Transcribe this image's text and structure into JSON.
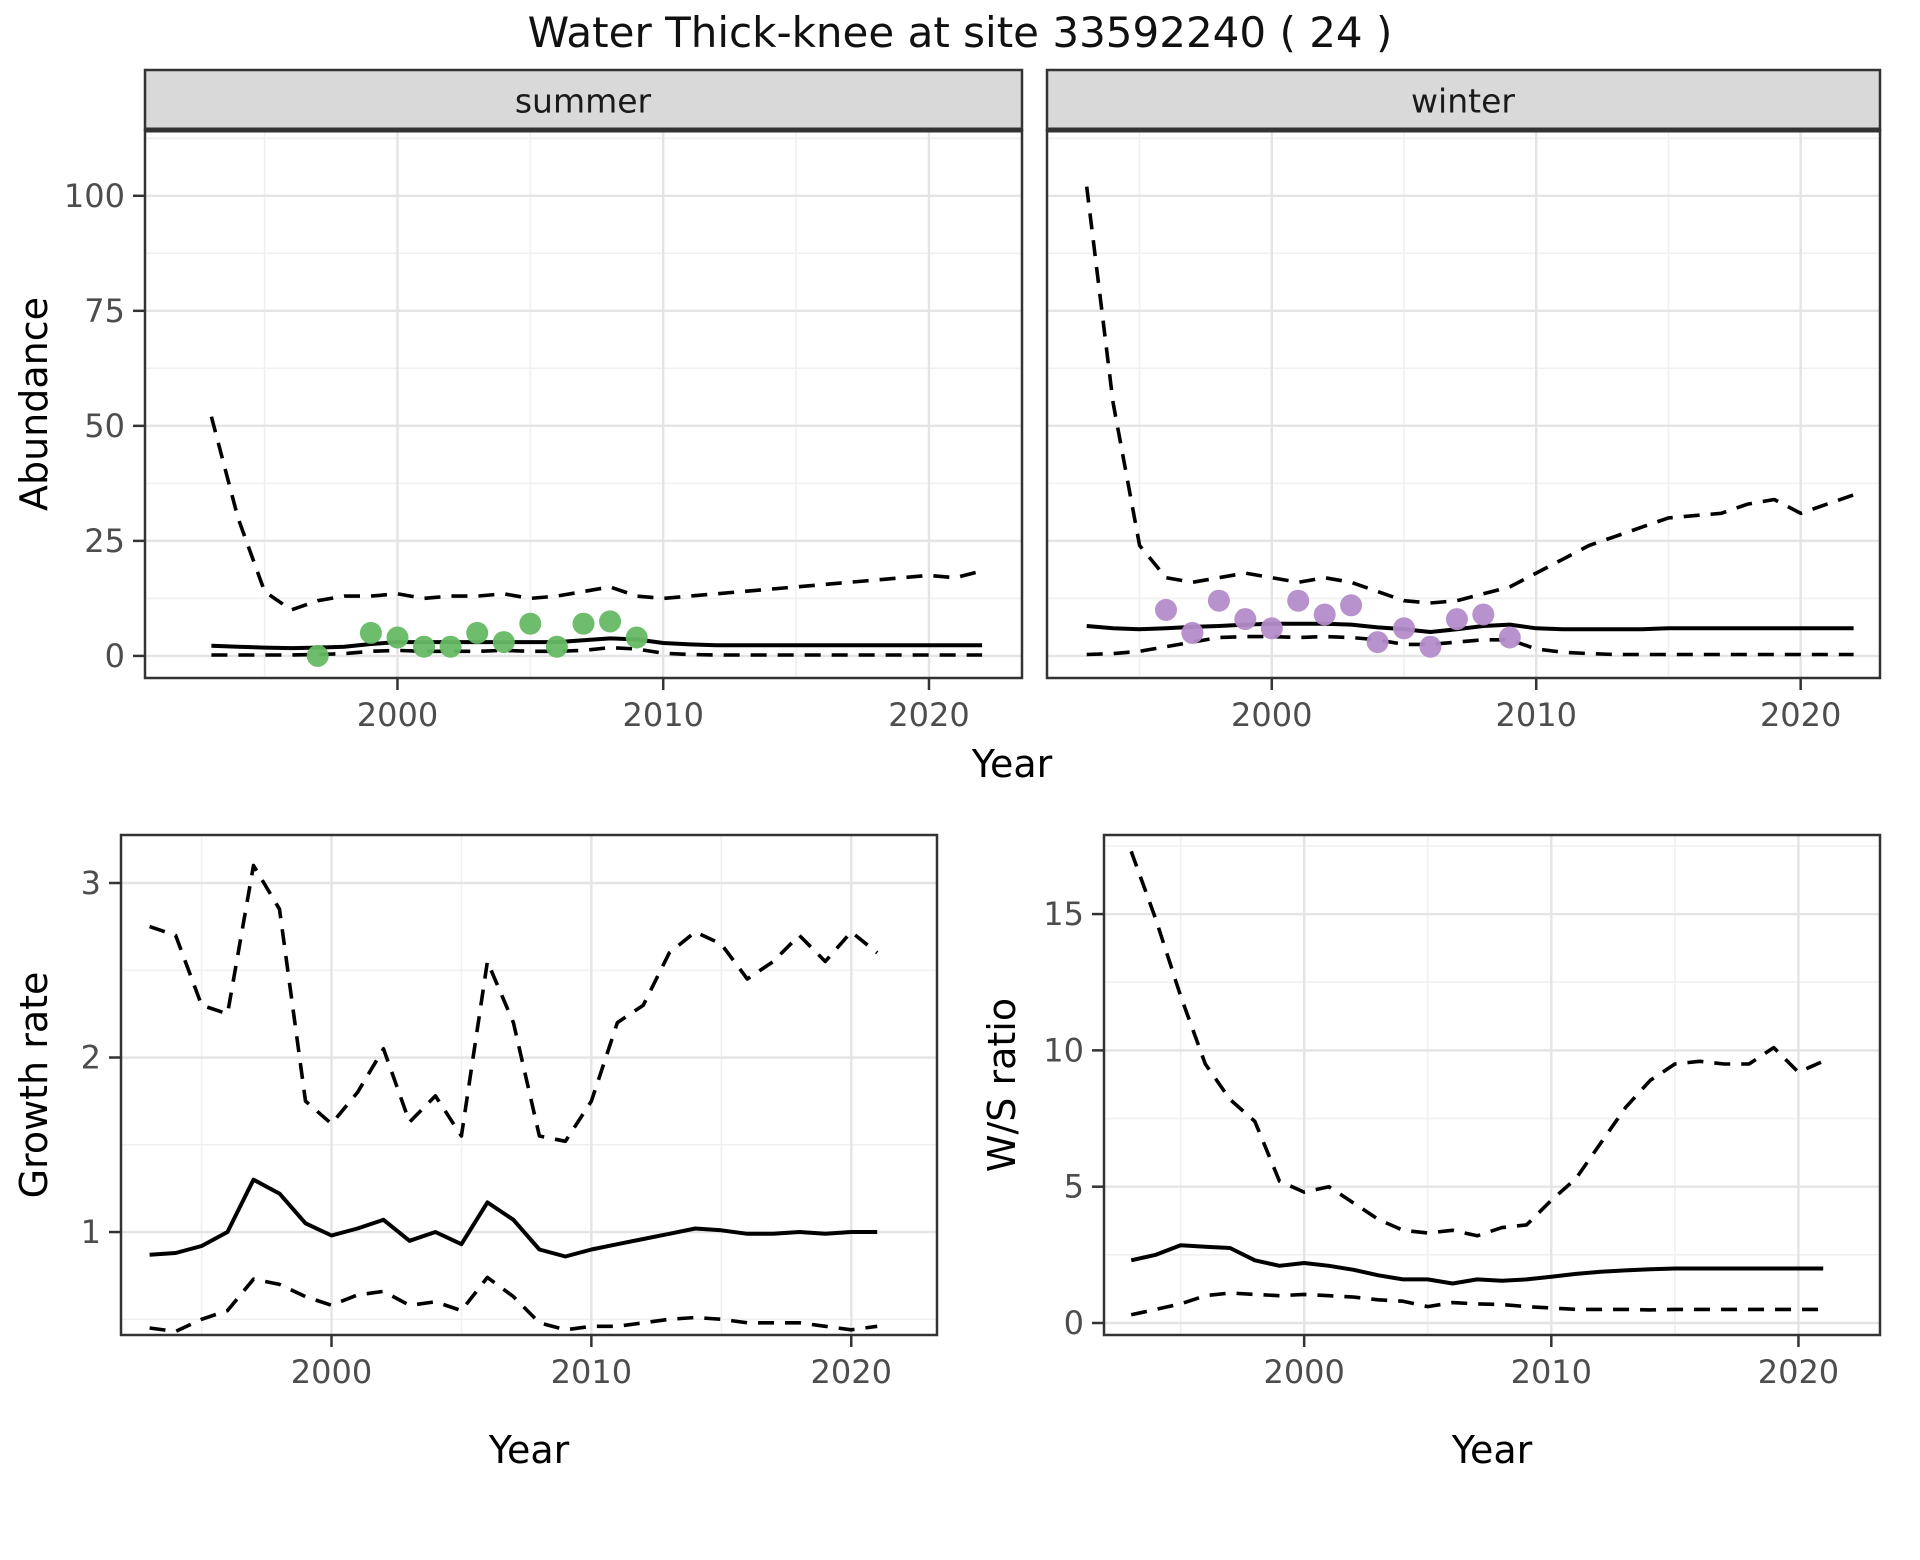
{
  "title": {
    "text": "Water Thick-knee at site 33592240 ( 24 )"
  },
  "style": {
    "line_color": "#000000",
    "point_green": "#65b965",
    "point_purple": "#b48cc9",
    "strip_bg": "#d9d9d9",
    "strip_text": "#1a1a1a",
    "grid_major": "#e4e4e4",
    "grid_minor": "#f0f0f0",
    "border": "#333333",
    "tick_label": "#4d4d4d"
  },
  "chart_data": [
    {
      "id": "abundance-summer",
      "type": "line",
      "strip_label": "summer",
      "ylabel": "Abundance",
      "xlabel": "Year",
      "legend": "none",
      "grid": true,
      "show_y_tick_labels": true,
      "x_range": [
        1990.5,
        2023.5
      ],
      "y_range": [
        -4.8,
        114.3
      ],
      "x_ticks": {
        "values": [
          2000,
          2010,
          2020
        ],
        "labels": [
          "2000",
          "2010",
          "2020"
        ]
      },
      "y_ticks": {
        "values": [
          0,
          25,
          50,
          75,
          100
        ],
        "labels": [
          "0",
          "25",
          "50",
          "75",
          "100"
        ]
      },
      "x_minor": [
        1995,
        2005,
        2015
      ],
      "y_minor": [
        12.5,
        37.5,
        62.5,
        87.5,
        112.5
      ],
      "years": [
        1993,
        1994,
        1995,
        1996,
        1997,
        1998,
        1999,
        2000,
        2001,
        2002,
        2003,
        2004,
        2005,
        2006,
        2007,
        2008,
        2009,
        2010,
        2011,
        2012,
        2013,
        2014,
        2015,
        2016,
        2017,
        2018,
        2019,
        2020,
        2021,
        2022
      ],
      "series": [
        {
          "name": "upper-ci",
          "style": "dashed",
          "values": [
            52,
            30,
            14,
            10,
            12,
            13,
            13,
            13.5,
            12.5,
            13,
            13,
            13.5,
            12.5,
            13,
            14,
            15,
            13,
            12.5,
            13,
            13.5,
            14,
            14.5,
            15,
            15.5,
            16,
            16.5,
            17,
            17.5,
            17,
            18.5
          ]
        },
        {
          "name": "median",
          "style": "solid",
          "values": [
            2.2,
            2.0,
            1.8,
            1.7,
            1.8,
            2.0,
            2.6,
            3.0,
            3.0,
            3.0,
            3.0,
            3.0,
            3.0,
            3.0,
            3.4,
            3.8,
            3.6,
            2.8,
            2.5,
            2.3,
            2.3,
            2.3,
            2.3,
            2.3,
            2.3,
            2.3,
            2.3,
            2.3,
            2.3,
            2.3
          ]
        },
        {
          "name": "lower-ci",
          "style": "dashed",
          "values": [
            0.2,
            0.2,
            0.2,
            0.2,
            0.3,
            0.5,
            1.0,
            1.2,
            1.0,
            1.0,
            1.0,
            1.2,
            1.0,
            1.0,
            1.2,
            1.8,
            1.5,
            0.6,
            0.3,
            0.2,
            0.2,
            0.2,
            0.2,
            0.2,
            0.2,
            0.2,
            0.2,
            0.2,
            0.2,
            0.2
          ]
        }
      ],
      "points": {
        "color": "#65b965",
        "years": [
          1997,
          1999,
          2000,
          2001,
          2002,
          2003,
          2004,
          2005,
          2006,
          2007,
          2008,
          2009
        ],
        "values": [
          0,
          5,
          4,
          2,
          2,
          5,
          3,
          7,
          2,
          7,
          7.5,
          4
        ]
      }
    },
    {
      "id": "abundance-winter",
      "type": "line",
      "strip_label": "winter",
      "ylabel": "Abundance",
      "xlabel": "Year",
      "legend": "none",
      "grid": true,
      "show_y_tick_labels": false,
      "x_range": [
        1991.5,
        2023.0
      ],
      "y_range": [
        -4.8,
        114.3
      ],
      "x_ticks": {
        "values": [
          2000,
          2010,
          2020
        ],
        "labels": [
          "2000",
          "2010",
          "2020"
        ]
      },
      "y_ticks": {
        "values": [
          0,
          25,
          50,
          75,
          100
        ],
        "labels": [
          "0",
          "25",
          "50",
          "75",
          "100"
        ]
      },
      "x_minor": [
        1995,
        2005,
        2015
      ],
      "y_minor": [
        12.5,
        37.5,
        62.5,
        87.5,
        112.5
      ],
      "years": [
        1993,
        1994,
        1995,
        1996,
        1997,
        1998,
        1999,
        2000,
        2001,
        2002,
        2003,
        2004,
        2005,
        2006,
        2007,
        2008,
        2009,
        2010,
        2011,
        2012,
        2013,
        2014,
        2015,
        2016,
        2017,
        2018,
        2019,
        2020,
        2021,
        2022
      ],
      "series": [
        {
          "name": "upper-ci",
          "style": "dashed",
          "values": [
            102,
            55,
            24,
            17,
            16,
            17,
            18,
            17,
            16,
            17,
            16,
            14,
            12,
            11.5,
            12,
            13.5,
            15,
            18,
            21,
            24,
            26,
            28,
            30,
            30.5,
            31,
            33,
            34,
            31,
            33,
            35
          ]
        },
        {
          "name": "median",
          "style": "solid",
          "values": [
            6.5,
            6.0,
            5.8,
            6.0,
            6.3,
            6.5,
            6.8,
            7.0,
            7.0,
            7.0,
            6.8,
            6.2,
            5.8,
            5.2,
            5.8,
            6.5,
            6.8,
            6.0,
            5.8,
            5.8,
            5.8,
            5.8,
            6.0,
            6.0,
            6.0,
            6.0,
            6.0,
            6.0,
            6.0,
            6.0
          ]
        },
        {
          "name": "lower-ci",
          "style": "dashed",
          "values": [
            0.3,
            0.5,
            1.0,
            2.0,
            3.0,
            4.0,
            4.2,
            4.2,
            4.0,
            4.2,
            4.0,
            3.5,
            2.5,
            2.5,
            3.0,
            3.5,
            3.5,
            1.5,
            0.8,
            0.5,
            0.3,
            0.3,
            0.3,
            0.3,
            0.3,
            0.3,
            0.3,
            0.3,
            0.3,
            0.3
          ]
        }
      ],
      "points": {
        "color": "#b48cc9",
        "years": [
          1996,
          1997,
          1998,
          1999,
          2000,
          2001,
          2002,
          2003,
          2004,
          2005,
          2006,
          2007,
          2008,
          2009
        ],
        "values": [
          10,
          5,
          12,
          8,
          6,
          12,
          9,
          11,
          3,
          6,
          2,
          8,
          9,
          4
        ]
      }
    },
    {
      "id": "growth-rate",
      "type": "line",
      "strip_label": "",
      "ylabel": "Growth rate",
      "xlabel": "Year",
      "legend": "none",
      "grid": true,
      "show_y_tick_labels": true,
      "x_range": [
        1991.9,
        2023.3
      ],
      "y_range": [
        0.41,
        3.275
      ],
      "x_ticks": {
        "values": [
          2000,
          2010,
          2020
        ],
        "labels": [
          "2000",
          "2010",
          "2020"
        ]
      },
      "y_ticks": {
        "values": [
          1,
          2,
          3
        ],
        "labels": [
          "1",
          "2",
          "3"
        ]
      },
      "x_minor": [
        1995,
        2005,
        2015
      ],
      "y_minor": [
        0.5,
        1.5,
        2.5
      ],
      "years": [
        1993,
        1994,
        1995,
        1996,
        1997,
        1998,
        1999,
        2000,
        2001,
        2002,
        2003,
        2004,
        2005,
        2006,
        2007,
        2008,
        2009,
        2010,
        2011,
        2012,
        2013,
        2014,
        2015,
        2016,
        2017,
        2018,
        2019,
        2020,
        2021
      ],
      "series": [
        {
          "name": "upper-ci",
          "style": "dashed",
          "values": [
            2.75,
            2.7,
            2.3,
            2.25,
            3.1,
            2.85,
            1.75,
            1.62,
            1.8,
            2.05,
            1.63,
            1.78,
            1.55,
            2.55,
            2.2,
            1.55,
            1.52,
            1.75,
            2.2,
            2.3,
            2.6,
            2.72,
            2.65,
            2.45,
            2.55,
            2.7,
            2.55,
            2.72,
            2.6
          ]
        },
        {
          "name": "median",
          "style": "solid",
          "values": [
            0.87,
            0.88,
            0.92,
            1.0,
            1.3,
            1.22,
            1.05,
            0.98,
            1.02,
            1.07,
            0.95,
            1.0,
            0.93,
            1.17,
            1.07,
            0.9,
            0.86,
            0.9,
            0.93,
            0.96,
            0.99,
            1.02,
            1.01,
            0.99,
            0.99,
            1.0,
            0.99,
            1.0,
            1.0
          ]
        },
        {
          "name": "lower-ci",
          "style": "dashed",
          "values": [
            0.45,
            0.43,
            0.5,
            0.55,
            0.73,
            0.7,
            0.63,
            0.58,
            0.64,
            0.66,
            0.58,
            0.6,
            0.55,
            0.74,
            0.63,
            0.48,
            0.44,
            0.46,
            0.46,
            0.48,
            0.5,
            0.51,
            0.5,
            0.48,
            0.48,
            0.48,
            0.46,
            0.44,
            0.46
          ]
        }
      ],
      "points": null
    },
    {
      "id": "ws-ratio",
      "type": "line",
      "strip_label": "",
      "ylabel": "W/S ratio",
      "xlabel": "Year",
      "legend": "none",
      "grid": true,
      "show_y_tick_labels": true,
      "x_range": [
        1991.9,
        2023.3
      ],
      "y_range": [
        -0.44,
        17.9
      ],
      "x_ticks": {
        "values": [
          2000,
          2010,
          2020
        ],
        "labels": [
          "2000",
          "2010",
          "2020"
        ]
      },
      "y_ticks": {
        "values": [
          0,
          5,
          10,
          15
        ],
        "labels": [
          "0",
          "5",
          "10",
          "15"
        ]
      },
      "x_minor": [
        1995,
        2005,
        2015
      ],
      "y_minor": [
        2.5,
        7.5,
        12.5,
        17.5
      ],
      "years": [
        1993,
        1994,
        1995,
        1996,
        1997,
        1998,
        1999,
        2000,
        2001,
        2002,
        2003,
        2004,
        2005,
        2006,
        2007,
        2008,
        2009,
        2010,
        2011,
        2012,
        2013,
        2014,
        2015,
        2016,
        2017,
        2018,
        2019,
        2020,
        2021
      ],
      "series": [
        {
          "name": "upper-ci",
          "style": "dashed",
          "values": [
            17.3,
            14.8,
            12.0,
            9.5,
            8.2,
            7.4,
            5.2,
            4.8,
            5.0,
            4.4,
            3.8,
            3.4,
            3.3,
            3.4,
            3.2,
            3.5,
            3.6,
            4.5,
            5.3,
            6.6,
            7.9,
            8.9,
            9.5,
            9.6,
            9.5,
            9.5,
            10.1,
            9.2,
            9.6
          ]
        },
        {
          "name": "median",
          "style": "solid",
          "values": [
            2.3,
            2.5,
            2.85,
            2.8,
            2.75,
            2.3,
            2.1,
            2.2,
            2.1,
            1.95,
            1.75,
            1.6,
            1.6,
            1.45,
            1.6,
            1.55,
            1.6,
            1.7,
            1.8,
            1.88,
            1.93,
            1.97,
            2.0,
            2.0,
            2.0,
            2.0,
            2.0,
            2.0,
            2.0
          ]
        },
        {
          "name": "lower-ci",
          "style": "dashed",
          "values": [
            0.3,
            0.5,
            0.7,
            1.0,
            1.1,
            1.05,
            1.0,
            1.05,
            1.0,
            0.95,
            0.85,
            0.8,
            0.6,
            0.75,
            0.7,
            0.68,
            0.6,
            0.55,
            0.5,
            0.5,
            0.5,
            0.48,
            0.5,
            0.5,
            0.5,
            0.5,
            0.5,
            0.5,
            0.5
          ]
        }
      ],
      "points": null
    }
  ]
}
